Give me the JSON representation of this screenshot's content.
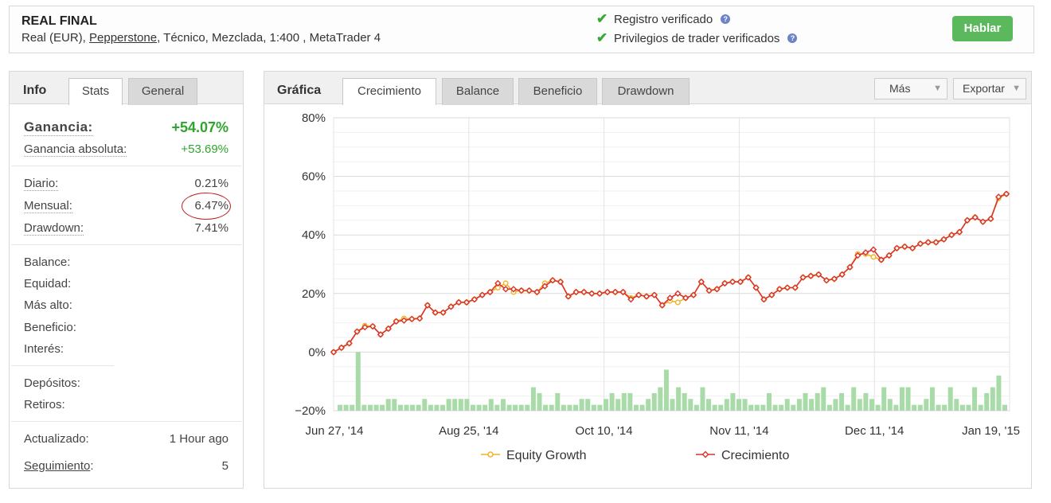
{
  "header": {
    "title": "REAL FINAL",
    "account_prefix": "Real (EUR), ",
    "broker": "Pepperstone",
    "account_suffix": ", Técnico, Mezclada, 1:400 , MetaTrader 4",
    "verified_1": "Registro verificado",
    "verified_2": "Privilegios de trader verificados",
    "help_glyph": "?",
    "button": "Hablar",
    "colors": {
      "button": "#5cb85c",
      "check": "#3ba83b"
    }
  },
  "info": {
    "tab_title": "Info",
    "tabs": [
      "Stats",
      "General"
    ],
    "active_tab": "Stats",
    "gain_label": "Ganancia:",
    "gain_value": "+54.07%",
    "abs_gain_label": "Ganancia absoluta:",
    "abs_gain_value": "+53.69%",
    "daily_label": "Diario:",
    "daily_value": "0.21%",
    "monthly_label": "Mensual:",
    "monthly_value": "6.47%",
    "drawdown_label": "Drawdown:",
    "drawdown_value": "7.41%",
    "balance_label": "Balance:",
    "equity_label": "Equidad:",
    "highest_label": "Más alto:",
    "profit_label": "Beneficio:",
    "interest_label": "Interés:",
    "deposits_label": "Depósitos:",
    "withdrawals_label": "Retiros:",
    "updated_label": "Actualizado:",
    "updated_value": "1 Hour ago",
    "tracking_label": "Seguimiento",
    "tracking_colon": ":",
    "tracking_value": "5"
  },
  "chart_panel": {
    "title": "Gráfica",
    "tabs": [
      "Crecimiento",
      "Balance",
      "Beneficio",
      "Drawdown"
    ],
    "active_tab": "Crecimiento",
    "more_dropdown": "Más",
    "export_dropdown": "Exportar"
  },
  "chart_data": {
    "type": "line",
    "y_tick_labels": [
      "80%",
      "60%",
      "40%",
      "20%",
      "0%",
      "−20%"
    ],
    "ylim": [
      -20,
      80
    ],
    "x_tick_labels": [
      "Jun 27, '14",
      "Aug 25, '14",
      "Oct 10, '14",
      "Nov 11, '14",
      "Dec 11, '14",
      "Jan 19, '15"
    ],
    "grid": true,
    "legend_position": "bottom",
    "series": [
      {
        "name": "Equity Growth",
        "color": "#f0b323",
        "values": [
          0.0,
          1.5,
          3.0,
          7.0,
          9.0,
          8.8,
          6.0,
          8.0,
          10.5,
          11.5,
          11.3,
          11.5,
          16.0,
          13.5,
          13.5,
          15.5,
          17.0,
          17.0,
          18.0,
          19.5,
          20.5,
          22.0,
          23.5,
          20.5,
          21.0,
          21.0,
          20.5,
          23.5,
          24.5,
          24.0,
          19.0,
          20.5,
          20.5,
          20.0,
          20.0,
          20.5,
          20.5,
          20.5,
          18.5,
          19.5,
          19.0,
          19.5,
          16.0,
          17.5,
          17.0,
          18.5,
          19.5,
          24.0,
          21.0,
          21.5,
          23.5,
          24.0,
          24.0,
          25.5,
          22.0,
          18.0,
          19.5,
          21.5,
          22.0,
          22.0,
          25.5,
          26.0,
          26.5,
          24.5,
          25.0,
          26.5,
          29.0,
          33.5,
          33.5,
          32.5,
          31.5,
          33.0,
          35.5,
          36.0,
          35.5,
          37.0,
          37.5,
          37.5,
          38.5,
          40.0,
          41.0,
          45.0,
          46.0,
          44.5,
          45.5,
          52.5,
          54.0
        ]
      },
      {
        "name": "Crecimiento",
        "color": "#d9342b",
        "values": [
          0.0,
          1.5,
          3.0,
          7.0,
          8.5,
          8.8,
          6.0,
          8.0,
          10.5,
          10.8,
          11.3,
          11.5,
          16.0,
          13.5,
          13.5,
          15.5,
          17.0,
          17.0,
          18.0,
          19.5,
          20.5,
          23.5,
          21.5,
          21.5,
          21.0,
          21.0,
          20.5,
          22.5,
          24.5,
          24.0,
          19.0,
          20.5,
          20.5,
          20.0,
          20.0,
          20.5,
          20.5,
          20.5,
          18.0,
          19.5,
          19.0,
          19.5,
          16.0,
          18.5,
          20.0,
          18.5,
          19.5,
          24.0,
          21.0,
          21.5,
          23.5,
          24.0,
          24.0,
          25.5,
          22.0,
          18.0,
          19.5,
          21.5,
          22.0,
          22.0,
          25.5,
          26.0,
          26.5,
          24.5,
          25.0,
          26.5,
          29.0,
          33.0,
          34.0,
          35.0,
          31.5,
          33.0,
          35.5,
          36.0,
          35.5,
          37.0,
          37.5,
          37.5,
          38.5,
          40.0,
          41.0,
          45.0,
          46.0,
          44.5,
          45.5,
          53.0,
          54.0
        ]
      }
    ],
    "bars": {
      "color": "#a8dba8",
      "values": [
        -18,
        -18,
        -18,
        0,
        -18,
        -18,
        -18,
        -18,
        -16,
        -16,
        -18,
        -18,
        -18,
        -18,
        -16,
        -18,
        -18,
        -18,
        -16,
        -16,
        -16,
        -16,
        -18,
        -18,
        -18,
        -16,
        -18,
        -16,
        -18,
        -18,
        -18,
        -18,
        -12,
        -14,
        -18,
        -18,
        -14,
        -18,
        -18,
        -18,
        -16,
        -16,
        -18,
        -18,
        -16,
        -14,
        -16,
        -14,
        -14,
        -18,
        -18,
        -16,
        -14,
        -12,
        -6,
        -16,
        -12,
        -14,
        -16,
        -18,
        -12,
        -16,
        -18,
        -18,
        -16,
        -14,
        -16,
        -16,
        -18,
        -18,
        -18,
        -14,
        -18,
        -18,
        -16,
        -18,
        -16,
        -14,
        -16,
        -14,
        -12,
        -18,
        -16,
        -14,
        -18,
        -12,
        -16,
        -14,
        -16,
        -18,
        -12,
        -16,
        -18,
        -12,
        -12,
        -18,
        -18,
        -16,
        -12,
        -18,
        -18,
        -12,
        -16,
        -18,
        -18,
        -12,
        -18,
        -14,
        -12,
        -8,
        -18
      ]
    }
  }
}
